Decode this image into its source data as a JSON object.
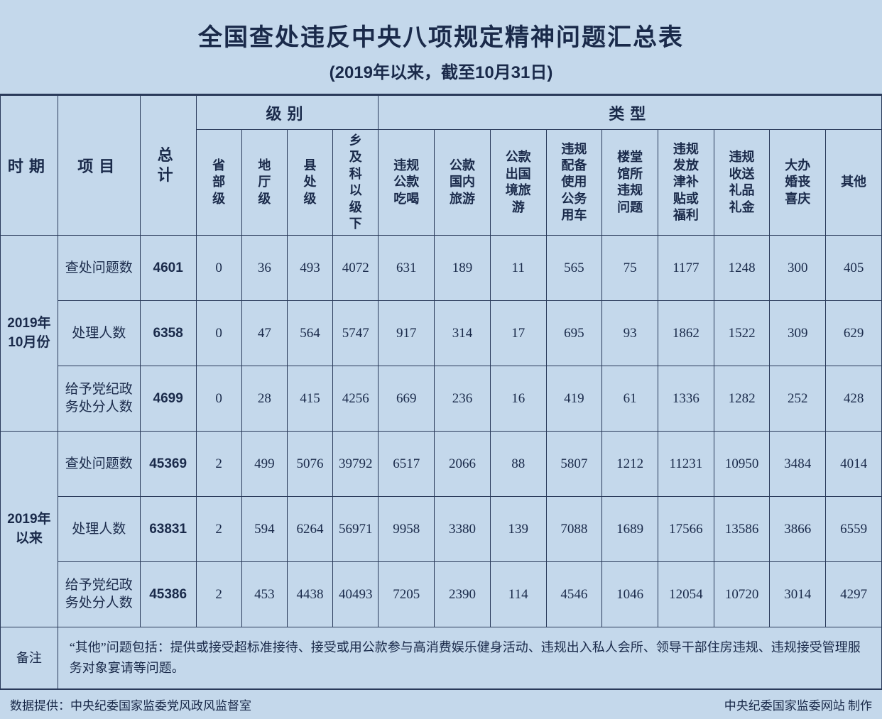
{
  "title": "全国查处违反中央八项规定精神问题汇总表",
  "subtitle": "(2019年以来，截至10月31日)",
  "headers": {
    "period": "时期",
    "item": "项目",
    "total": "总计",
    "level_group": "级别",
    "type_group": "类型",
    "levels": [
      "省部级",
      "地厅级",
      "县处级",
      "乡及科以级下"
    ],
    "types": [
      "违规公款吃喝",
      "公款国内旅游",
      "公款出国境旅游",
      "违规配备使用公务用车",
      "楼堂馆所违规问题",
      "违规发放津补贴或福利",
      "违规收送礼品礼金",
      "大办婚丧喜庆",
      "其他"
    ]
  },
  "periods": [
    {
      "label": "2019年10月份",
      "rows": [
        {
          "item": "查处问题数",
          "total": "4601",
          "values": [
            "0",
            "36",
            "493",
            "4072",
            "631",
            "189",
            "11",
            "565",
            "75",
            "1177",
            "1248",
            "300",
            "405"
          ]
        },
        {
          "item": "处理人数",
          "total": "6358",
          "values": [
            "0",
            "47",
            "564",
            "5747",
            "917",
            "314",
            "17",
            "695",
            "93",
            "1862",
            "1522",
            "309",
            "629"
          ]
        },
        {
          "item": "给予党纪政务处分人数",
          "total": "4699",
          "values": [
            "0",
            "28",
            "415",
            "4256",
            "669",
            "236",
            "16",
            "419",
            "61",
            "1336",
            "1282",
            "252",
            "428"
          ]
        }
      ]
    },
    {
      "label": "2019年以来",
      "rows": [
        {
          "item": "查处问题数",
          "total": "45369",
          "values": [
            "2",
            "499",
            "5076",
            "39792",
            "6517",
            "2066",
            "88",
            "5807",
            "1212",
            "11231",
            "10950",
            "3484",
            "4014"
          ]
        },
        {
          "item": "处理人数",
          "total": "63831",
          "values": [
            "2",
            "594",
            "6264",
            "56971",
            "9958",
            "3380",
            "139",
            "7088",
            "1689",
            "17566",
            "13586",
            "3866",
            "6559"
          ]
        },
        {
          "item": "给予党纪政务处分人数",
          "total": "45386",
          "values": [
            "2",
            "453",
            "4438",
            "40493",
            "7205",
            "2390",
            "114",
            "4546",
            "1046",
            "12054",
            "10720",
            "3014",
            "4297"
          ]
        }
      ]
    }
  ],
  "note_label": "备注",
  "note_text": "“其他”问题包括：提供或接受超标准接待、接受或用公款参与高消费娱乐健身活动、违规出入私人会所、领导干部住房违规、违规接受管理服务对象宴请等问题。",
  "footer_left": "数据提供：中央纪委国家监委党风政风监督室",
  "footer_right": "中央纪委国家监委网站 制作",
  "colors": {
    "background": "#c4d8eb",
    "border": "#2a3a5a",
    "text": "#1a2a4a"
  }
}
